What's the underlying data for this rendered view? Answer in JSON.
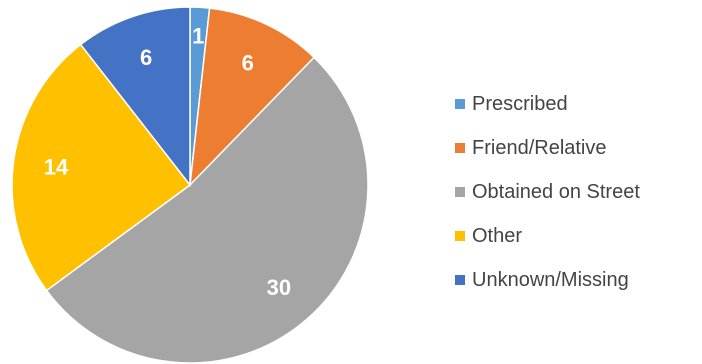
{
  "chart_data": {
    "type": "pie",
    "title": "",
    "slices": [
      {
        "label": "Prescribed",
        "value": 1,
        "color": "#5b9bd5"
      },
      {
        "label": "Friend/Relative",
        "value": 6,
        "color": "#ed7d31"
      },
      {
        "label": "Obtained on Street",
        "value": 30,
        "color": "#a5a5a5"
      },
      {
        "label": "Other",
        "value": 14,
        "color": "#ffc000"
      },
      {
        "label": "Unknown/Missing",
        "value": 6,
        "color": "#4472c4"
      }
    ],
    "legend_position": "right",
    "data_labels": true
  }
}
